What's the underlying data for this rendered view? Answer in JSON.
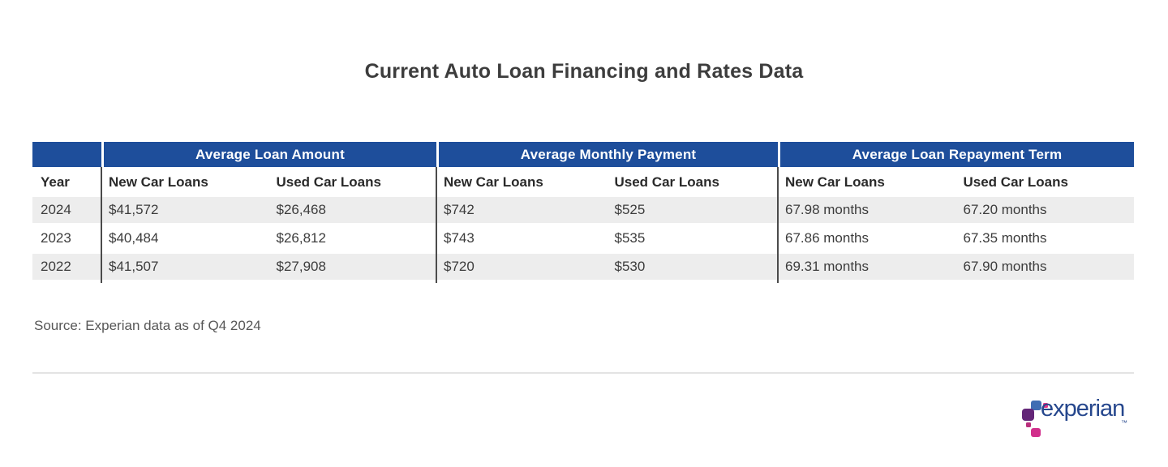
{
  "page": {
    "title": "Current Auto Loan Financing and Rates Data",
    "source_note": "Source: Experian data as of Q4 2024"
  },
  "chart_data": {
    "type": "table",
    "title": "Current Auto Loan Financing and Rates Data",
    "column_groups": [
      "Average Loan Amount",
      "Average Monthly Payment",
      "Average Loan Repayment Term"
    ],
    "columns": [
      "Year",
      "New Car Loans",
      "Used Car Loans",
      "New Car Loans",
      "Used Car Loans",
      "New Car Loans",
      "Used Car Loans"
    ],
    "rows": [
      [
        "2024",
        "$41,572",
        "$26,468",
        "$742",
        "$525",
        "67.98 months",
        "67.20 months"
      ],
      [
        "2023",
        "$40,484",
        "$26,812",
        "$743",
        "$535",
        "67.86 months",
        "67.35 months"
      ],
      [
        "2022",
        "$41,507",
        "$27,908",
        "$720",
        "$530",
        "69.31 months",
        "67.90 months"
      ]
    ],
    "source": "Source: Experian data as of Q4 2024"
  },
  "logo": {
    "brand": "experian",
    "trademark": "™"
  },
  "colors": {
    "header_blue": "#1e4e9b",
    "row_stripe": "#ededed",
    "column_divider": "#4b4b4b",
    "horizontal_rule": "#e3e3e3",
    "logo_text_blue": "#26478d",
    "logo_square_blue": "#406eb3",
    "logo_square_purple": "#632678",
    "logo_square_magenta": "#ba2f7d",
    "logo_square_pink": "#e63888"
  }
}
